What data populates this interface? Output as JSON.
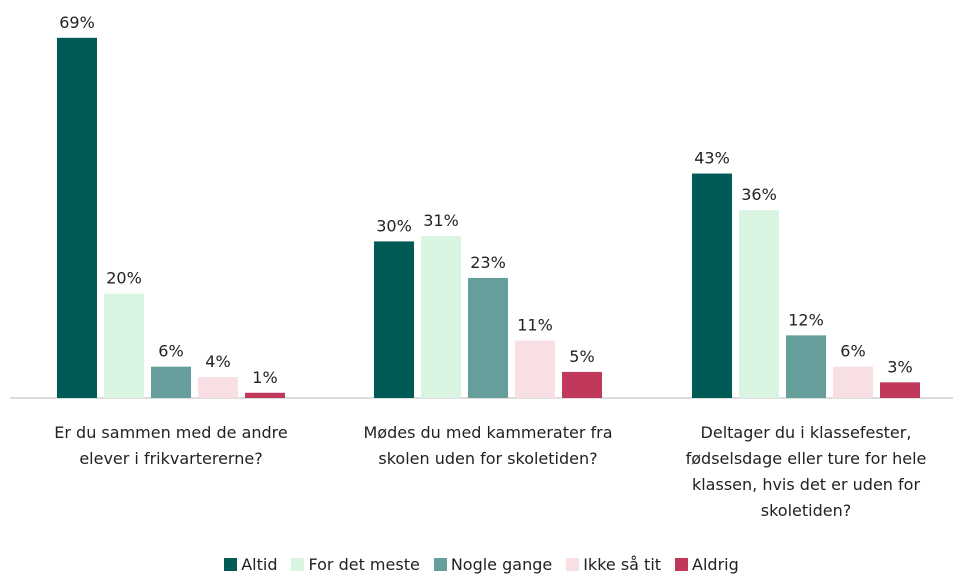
{
  "chart_data": {
    "type": "bar",
    "categories": [
      "Er du sammen med de andre elever i frikvartererne?",
      "Mødes du med kammerater fra skolen uden for skoletiden?",
      "Deltager du i klassefester, fødselsdage eller ture for hele klassen, hvis det er uden for skoletiden?"
    ],
    "series": [
      {
        "name": "Altid",
        "color": "#005a55",
        "values": [
          69,
          30,
          43
        ],
        "value_labels": [
          "69%",
          "30%",
          "43%"
        ]
      },
      {
        "name": "For det meste",
        "color": "#d9f5e1",
        "values": [
          20,
          31,
          36
        ],
        "value_labels": [
          "20%",
          "31%",
          "36%"
        ]
      },
      {
        "name": "Nogle gange",
        "color": "#659e9b",
        "values": [
          6,
          23,
          12
        ],
        "value_labels": [
          "6%",
          "23%",
          "12%"
        ]
      },
      {
        "name": "Ikke så tit",
        "color": "#f7dfe4",
        "values": [
          4,
          11,
          6
        ],
        "value_labels": [
          "4%",
          "11%",
          "6%"
        ]
      },
      {
        "name": "Aldrig",
        "color": "#c0385a",
        "values": [
          1,
          5,
          3
        ],
        "value_labels": [
          "1%",
          "5%",
          "3%"
        ]
      }
    ],
    "legend": "bottom"
  }
}
